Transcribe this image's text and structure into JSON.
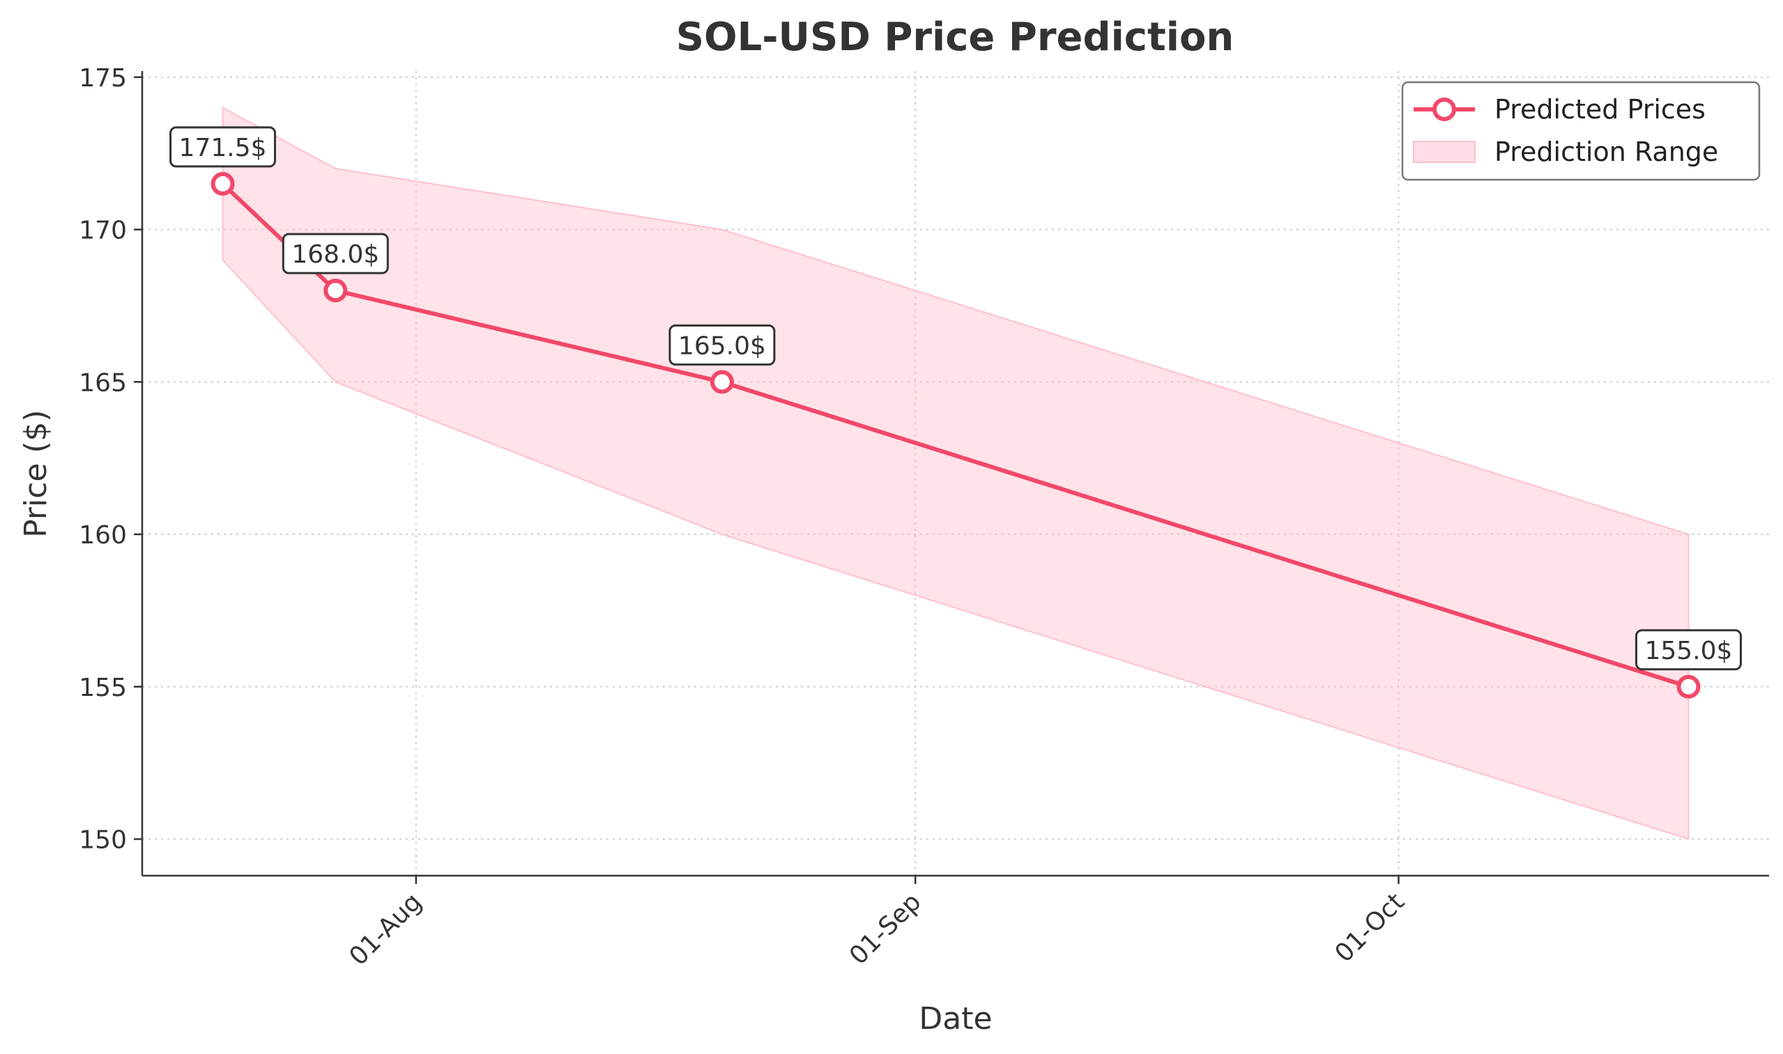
{
  "chart_data": {
    "type": "line",
    "title": "SOL-USD Price Prediction",
    "xlabel": "Date",
    "ylabel": "Price ($)",
    "x_axis_type": "date",
    "xlim": [
      "2024-07-15",
      "2024-10-24"
    ],
    "ylim": [
      148.8,
      175.2
    ],
    "y_ticks": [
      150,
      155,
      160,
      165,
      170,
      175
    ],
    "x_ticks": [
      {
        "date": "2024-08-01",
        "label": "01-Aug"
      },
      {
        "date": "2024-09-01",
        "label": "01-Sep"
      },
      {
        "date": "2024-10-01",
        "label": "01-Oct"
      }
    ],
    "grid": true,
    "legend_position": "top-right",
    "colors": {
      "line": "#f2486a",
      "band": "#ffc0cb",
      "axis": "#333333",
      "grid": "#cccccc"
    },
    "series": [
      {
        "name": "Predicted Prices",
        "points": [
          {
            "x": "2024-07-20",
            "y": 171.5
          },
          {
            "x": "2024-07-27",
            "y": 168.0
          },
          {
            "x": "2024-08-20",
            "y": 165.0
          },
          {
            "x": "2024-10-19",
            "y": 155.0
          }
        ]
      }
    ],
    "band": {
      "name": "Prediction Range",
      "points": [
        {
          "x": "2024-07-20",
          "low": 169.0,
          "high": 174.0
        },
        {
          "x": "2024-07-27",
          "low": 165.0,
          "high": 172.0
        },
        {
          "x": "2024-08-20",
          "low": 160.0,
          "high": 170.0
        },
        {
          "x": "2024-10-19",
          "low": 150.0,
          "high": 160.0
        }
      ]
    },
    "data_labels": [
      "171.5$",
      "168.0$",
      "165.0$",
      "155.0$"
    ]
  }
}
